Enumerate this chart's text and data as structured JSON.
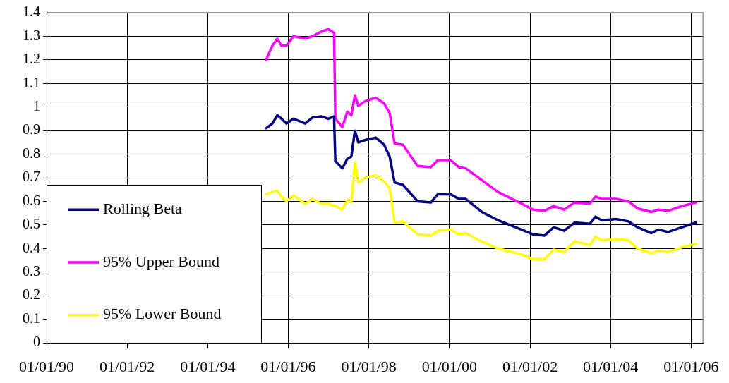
{
  "chart_data": {
    "type": "line",
    "x": [
      "1995-06-14",
      "1995-08-10",
      "1995-09-24",
      "1995-11-01",
      "1995-12-15",
      "1996-02-17",
      "1996-06-03",
      "1996-08-06",
      "1996-10-27",
      "1996-12-30",
      "1997-02-19",
      "1997-03-03",
      "1997-05-05",
      "1997-06-19",
      "1997-07-26",
      "1997-08-27",
      "1997-09-27",
      "1997-11-29",
      "1998-03-04",
      "1998-05-19",
      "1998-07-08",
      "1998-08-22",
      "1998-11-06",
      "1999-03-18",
      "1999-07-17",
      "1999-09-18",
      "2000-01-10",
      "2000-03-26",
      "2000-05-28",
      "2000-10-21",
      "2001-03-15",
      "2001-10-17",
      "2002-01-26",
      "2002-05-13",
      "2002-08-03",
      "2002-11-06",
      "2003-02-08",
      "2003-06-27",
      "2003-08-17",
      "2003-10-13",
      "2004-02-23",
      "2004-06-10",
      "2004-09-01",
      "2005-01-05",
      "2005-03-09",
      "2005-06-06",
      "2005-10-10",
      "2006-02-14"
    ],
    "series": [
      {
        "name": "Rolling Beta",
        "color": "#000080",
        "values": [
          0.91,
          0.93,
          0.965,
          0.95,
          0.93,
          0.95,
          0.93,
          0.955,
          0.96,
          0.95,
          0.96,
          0.77,
          0.74,
          0.78,
          0.79,
          0.9,
          0.85,
          0.86,
          0.87,
          0.84,
          0.79,
          0.68,
          0.67,
          0.6,
          0.595,
          0.63,
          0.63,
          0.61,
          0.61,
          0.555,
          0.52,
          0.48,
          0.46,
          0.455,
          0.49,
          0.475,
          0.51,
          0.505,
          0.535,
          0.52,
          0.525,
          0.515,
          0.49,
          0.465,
          0.48,
          0.47,
          0.49,
          0.51
        ]
      },
      {
        "name": "95% Upper Bound",
        "color": "#ff00ff",
        "values": [
          1.2,
          1.26,
          1.29,
          1.26,
          1.26,
          1.3,
          1.29,
          1.3,
          1.32,
          1.33,
          1.315,
          0.95,
          0.915,
          0.98,
          0.965,
          1.05,
          1.005,
          1.025,
          1.04,
          1.015,
          0.975,
          0.845,
          0.84,
          0.75,
          0.745,
          0.775,
          0.775,
          0.745,
          0.74,
          0.69,
          0.64,
          0.59,
          0.565,
          0.56,
          0.58,
          0.565,
          0.595,
          0.59,
          0.62,
          0.61,
          0.61,
          0.6,
          0.57,
          0.555,
          0.565,
          0.56,
          0.58,
          0.595
        ]
      },
      {
        "name": "95% Lower Bound",
        "color": "#ffff00",
        "values": [
          0.63,
          0.64,
          0.645,
          0.62,
          0.6,
          0.625,
          0.59,
          0.61,
          0.59,
          0.59,
          0.58,
          0.58,
          0.565,
          0.605,
          0.595,
          0.765,
          0.68,
          0.7,
          0.71,
          0.685,
          0.655,
          0.51,
          0.515,
          0.46,
          0.455,
          0.475,
          0.48,
          0.46,
          0.465,
          0.43,
          0.4,
          0.375,
          0.355,
          0.355,
          0.395,
          0.385,
          0.43,
          0.415,
          0.45,
          0.435,
          0.44,
          0.435,
          0.4,
          0.38,
          0.39,
          0.385,
          0.405,
          0.42
        ]
      }
    ],
    "xlim": [
      "1990-01-01",
      "2006-04-20"
    ],
    "xticks": [
      {
        "value": "1990-01-01",
        "label": "01/01/90"
      },
      {
        "value": "1992-01-01",
        "label": "01/01/92"
      },
      {
        "value": "1994-01-01",
        "label": "01/01/94"
      },
      {
        "value": "1996-01-01",
        "label": "01/01/96"
      },
      {
        "value": "1998-01-01",
        "label": "01/01/98"
      },
      {
        "value": "2000-01-01",
        "label": "01/01/00"
      },
      {
        "value": "2002-01-01",
        "label": "01/01/02"
      },
      {
        "value": "2004-01-01",
        "label": "01/01/04"
      },
      {
        "value": "2006-01-01",
        "label": "01/01/06"
      }
    ],
    "ylim": [
      0,
      1.4
    ],
    "yticks": [
      0,
      0.1,
      0.2,
      0.3,
      0.4,
      0.5,
      0.6,
      0.7,
      0.8,
      0.9,
      1,
      1.1,
      1.2,
      1.3,
      1.4
    ],
    "grid": true,
    "legend": "bottom left",
    "marker": "none",
    "line_style": "solid"
  }
}
